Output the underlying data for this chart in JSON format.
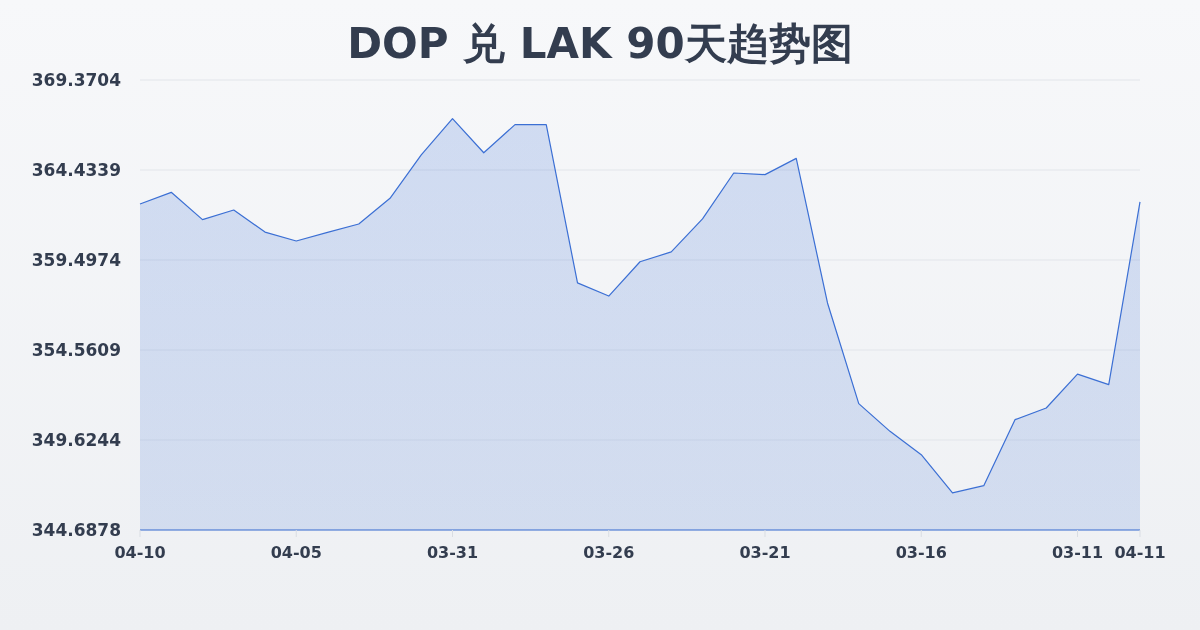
{
  "chart_data": {
    "type": "area",
    "title": "DOP 兑 LAK 90天趋势图",
    "categories": [
      "04-10",
      null,
      null,
      null,
      null,
      "04-05",
      null,
      null,
      null,
      null,
      "03-31",
      null,
      null,
      null,
      null,
      "03-26",
      null,
      null,
      null,
      null,
      "03-21",
      null,
      null,
      null,
      null,
      "03-16",
      null,
      null,
      null,
      null,
      "03-11",
      null,
      "04-11"
    ],
    "values": [
      362.57,
      363.21,
      361.71,
      362.24,
      361.03,
      360.54,
      361.01,
      361.47,
      362.88,
      365.26,
      367.25,
      365.38,
      366.92,
      366.92,
      358.24,
      357.52,
      359.4,
      359.94,
      361.75,
      364.27,
      364.18,
      365.07,
      357.14,
      351.62,
      350.1,
      348.82,
      346.72,
      347.12,
      350.74,
      351.38,
      353.24,
      352.66,
      362.68
    ],
    "color": "#3b6fd4",
    "ylim": [
      344.6878,
      369.3704
    ],
    "yticks": [
      344.6878,
      349.6244,
      354.5609,
      359.4974,
      364.4339,
      369.3704
    ],
    "grid": "y"
  }
}
